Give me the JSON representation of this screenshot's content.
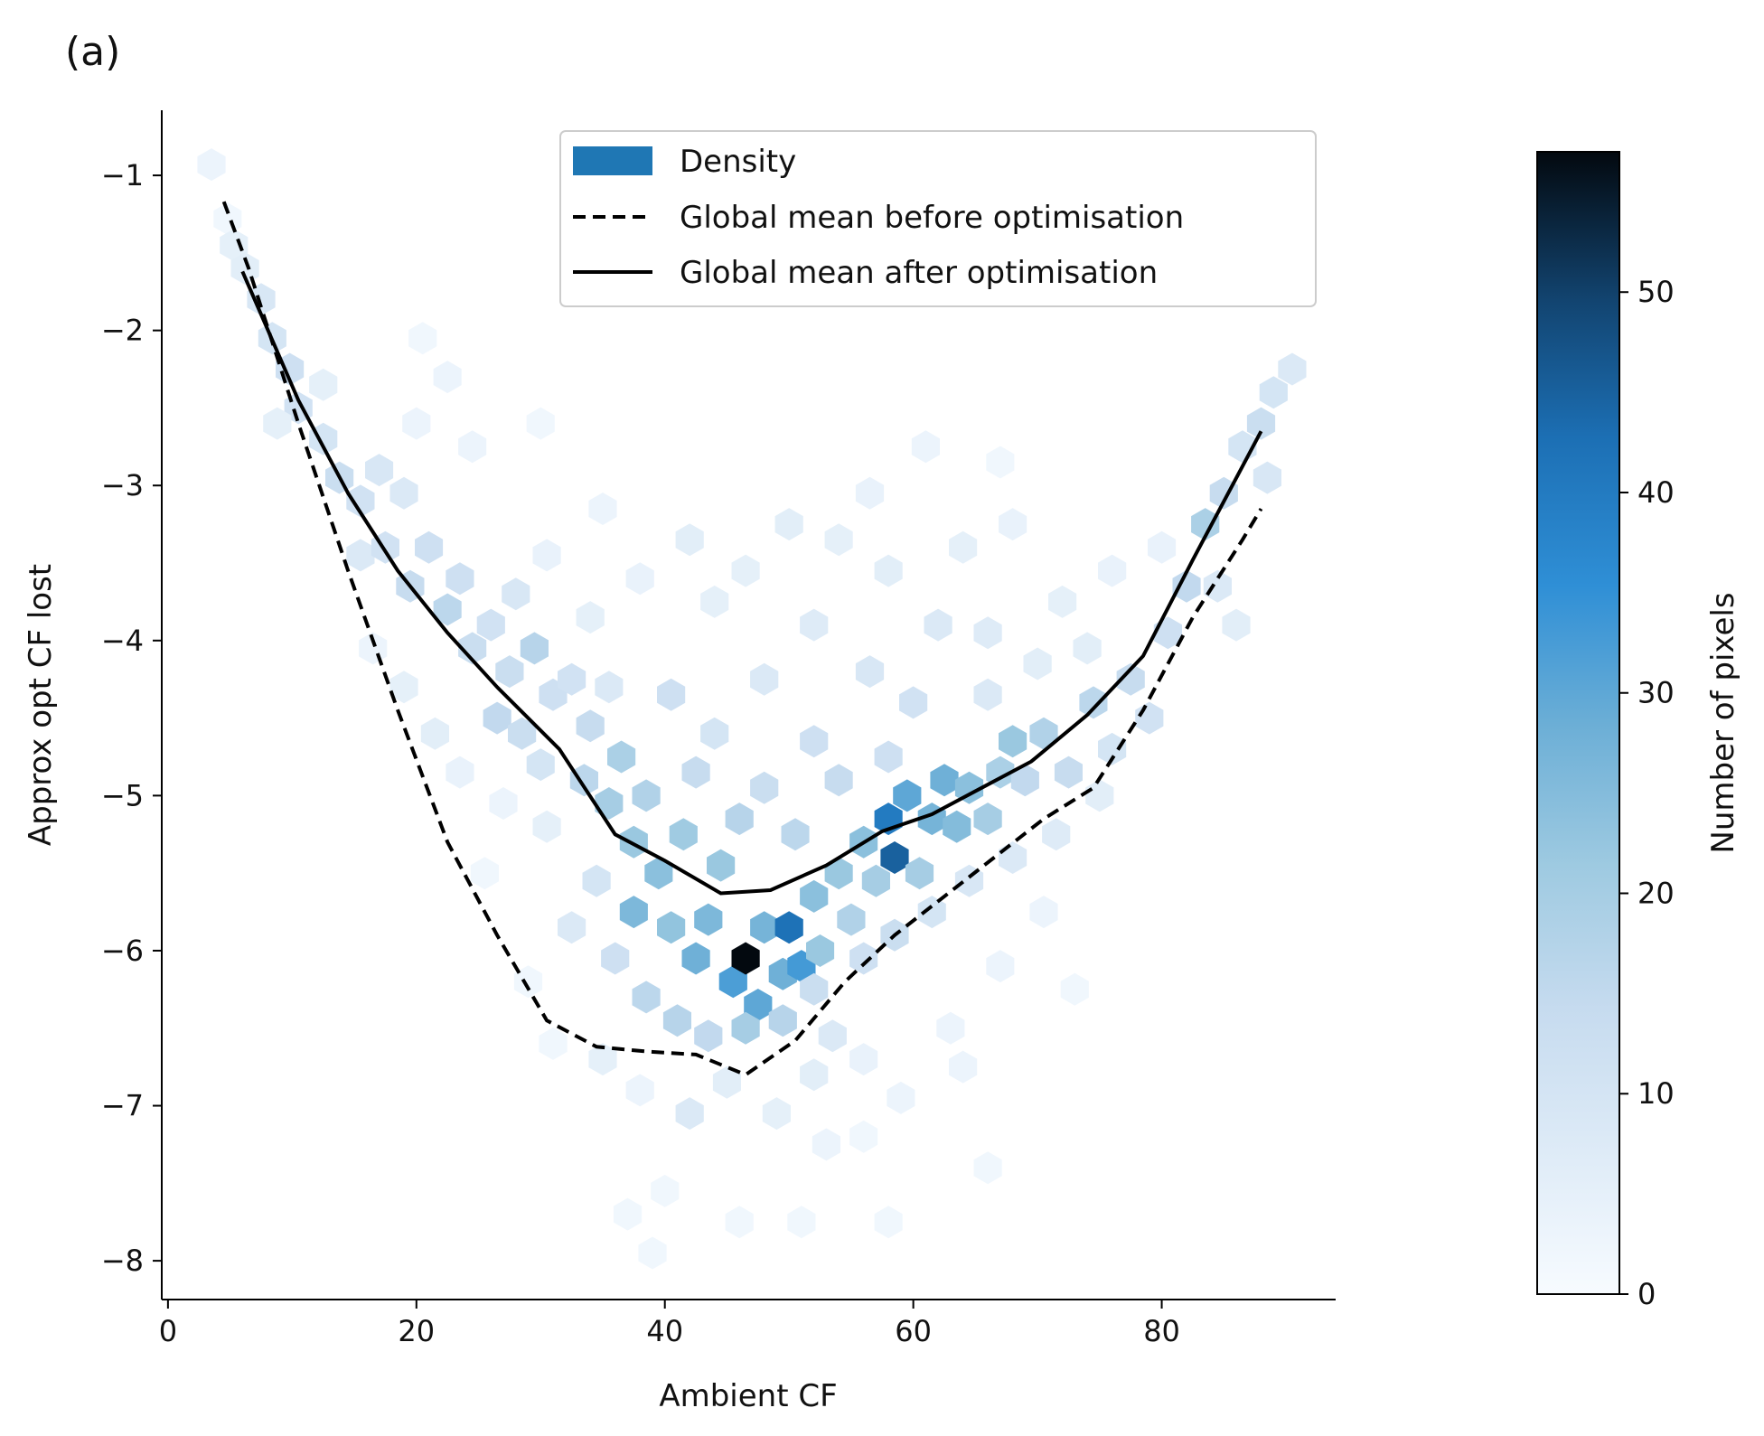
{
  "chart_data": {
    "type": "hexbin",
    "panel_label": "(a)",
    "xlabel": "Ambient CF",
    "ylabel": "Approx opt CF lost",
    "xlim": [
      -0.5,
      94
    ],
    "ylim": [
      -8.25,
      -0.58
    ],
    "xticks": [
      0,
      20,
      40,
      60,
      80
    ],
    "yticks": [
      -8,
      -7,
      -6,
      -5,
      -4,
      -3,
      -2,
      -1
    ],
    "xtick_labels": [
      "0",
      "20",
      "40",
      "60",
      "80"
    ],
    "ytick_labels": [
      "−8",
      "−7",
      "−6",
      "−5",
      "−4",
      "−3",
      "−2",
      "−1"
    ],
    "legend": {
      "position": "upper-center",
      "entries": [
        {
          "label": "Density",
          "kind": "patch",
          "color": "#1f77b4"
        },
        {
          "label": "Global mean before optimisation",
          "kind": "dashed-line",
          "color": "#000000"
        },
        {
          "label": "Global mean after optimisation",
          "kind": "solid-line",
          "color": "#000000"
        }
      ]
    },
    "colorbar": {
      "label": "Number of pixels",
      "range": [
        0,
        57
      ],
      "ticks": [
        0,
        10,
        20,
        30,
        40,
        50
      ],
      "tick_labels": [
        "0",
        "10",
        "20",
        "30",
        "40",
        "50"
      ],
      "colormap": "Blues"
    },
    "series": [
      {
        "name": "Global mean before optimisation",
        "style": "dashed",
        "color": "#000000",
        "x": [
          4.5,
          6.5,
          10.5,
          14.5,
          18.5,
          22.5,
          26.5,
          30.5,
          34.5,
          38.5,
          42.5,
          46.5,
          50.5,
          54.5,
          58.5,
          62.5,
          66.5,
          70.5,
          74.5,
          78.5,
          82.5,
          86.5,
          88
        ],
        "y": [
          -1.17,
          -1.6,
          -2.6,
          -3.55,
          -4.45,
          -5.3,
          -5.9,
          -6.45,
          -6.62,
          -6.65,
          -6.67,
          -6.8,
          -6.58,
          -6.2,
          -5.9,
          -5.65,
          -5.4,
          -5.15,
          -4.95,
          -4.45,
          -3.85,
          -3.35,
          -3.15
        ]
      },
      {
        "name": "Global mean after optimisation",
        "style": "solid",
        "color": "#000000",
        "x": [
          6,
          10.5,
          14.5,
          18.5,
          22.5,
          26.5,
          31.5,
          36,
          40,
          44.5,
          48.5,
          53,
          57.5,
          61.5,
          65.5,
          69.5,
          74,
          78.5,
          82.5,
          88
        ],
        "y": [
          -1.62,
          -2.45,
          -3.05,
          -3.55,
          -3.95,
          -4.3,
          -4.7,
          -5.25,
          -5.42,
          -5.63,
          -5.61,
          -5.45,
          -5.23,
          -5.12,
          -4.95,
          -4.78,
          -4.48,
          -4.1,
          -3.48,
          -2.65
        ]
      }
    ],
    "density_cells": [
      [
        3.5,
        -0.93,
        3
      ],
      [
        4.8,
        -1.28,
        2
      ],
      [
        5.3,
        -1.45,
        5
      ],
      [
        6.2,
        -1.6,
        6
      ],
      [
        7.5,
        -1.8,
        9
      ],
      [
        8.4,
        -2.05,
        10
      ],
      [
        9.8,
        -2.25,
        12
      ],
      [
        10.5,
        -2.5,
        11
      ],
      [
        8.8,
        -2.6,
        5
      ],
      [
        12.5,
        -2.35,
        5
      ],
      [
        12.5,
        -2.7,
        10
      ],
      [
        13.8,
        -2.95,
        13
      ],
      [
        15.5,
        -3.1,
        11
      ],
      [
        17,
        -2.9,
        9
      ],
      [
        19,
        -3.05,
        8
      ],
      [
        15.5,
        -3.45,
        8
      ],
      [
        17.5,
        -3.4,
        11
      ],
      [
        19.5,
        -3.65,
        14
      ],
      [
        21,
        -3.4,
        12
      ],
      [
        22.5,
        -3.8,
        16
      ],
      [
        23.5,
        -3.6,
        12
      ],
      [
        24.5,
        -4.05,
        13
      ],
      [
        26,
        -3.9,
        11
      ],
      [
        27.5,
        -4.2,
        13
      ],
      [
        28,
        -3.7,
        9
      ],
      [
        29.5,
        -4.05,
        17
      ],
      [
        31,
        -4.35,
        12
      ],
      [
        26.5,
        -4.5,
        15
      ],
      [
        28.5,
        -4.6,
        13
      ],
      [
        30,
        -4.8,
        10
      ],
      [
        32.5,
        -4.25,
        11
      ],
      [
        34,
        -4.55,
        14
      ],
      [
        35.5,
        -4.3,
        8
      ],
      [
        33.5,
        -4.9,
        16
      ],
      [
        35.5,
        -5.05,
        20
      ],
      [
        36.5,
        -4.75,
        19
      ],
      [
        37.5,
        -5.3,
        22
      ],
      [
        38.5,
        -5.0,
        18
      ],
      [
        37.5,
        -5.75,
        26
      ],
      [
        39.5,
        -5.5,
        24
      ],
      [
        40.5,
        -5.85,
        23
      ],
      [
        41.5,
        -5.25,
        21
      ],
      [
        42.5,
        -6.05,
        28
      ],
      [
        43.5,
        -5.8,
        26
      ],
      [
        44.5,
        -5.45,
        22
      ],
      [
        45.5,
        -6.2,
        32
      ],
      [
        46.5,
        -6.05,
        57
      ],
      [
        47.5,
        -6.35,
        30
      ],
      [
        48,
        -5.85,
        27
      ],
      [
        49.5,
        -6.15,
        28
      ],
      [
        50,
        -5.85,
        42
      ],
      [
        51,
        -6.1,
        33
      ],
      [
        52,
        -5.65,
        24
      ],
      [
        52.5,
        -6.0,
        22
      ],
      [
        54,
        -5.5,
        22
      ],
      [
        55,
        -5.8,
        18
      ],
      [
        56,
        -5.3,
        24
      ],
      [
        57,
        -5.55,
        20
      ],
      [
        58,
        -5.15,
        40
      ],
      [
        58.5,
        -5.4,
        45
      ],
      [
        59.5,
        -5.0,
        30
      ],
      [
        60.5,
        -5.5,
        20
      ],
      [
        61.5,
        -5.15,
        27
      ],
      [
        62.5,
        -4.9,
        28
      ],
      [
        63.5,
        -5.2,
        25
      ],
      [
        64.5,
        -4.95,
        24
      ],
      [
        66,
        -5.15,
        20
      ],
      [
        67,
        -4.85,
        19
      ],
      [
        68,
        -4.65,
        22
      ],
      [
        69,
        -4.9,
        15
      ],
      [
        70.5,
        -4.6,
        18
      ],
      [
        72.5,
        -4.85,
        14
      ],
      [
        74.5,
        -4.4,
        16
      ],
      [
        76,
        -4.7,
        10
      ],
      [
        77.5,
        -4.25,
        14
      ],
      [
        79,
        -4.5,
        11
      ],
      [
        80.5,
        -3.95,
        12
      ],
      [
        82,
        -3.65,
        15
      ],
      [
        83.5,
        -3.25,
        19
      ],
      [
        85,
        -3.05,
        14
      ],
      [
        86.5,
        -2.75,
        10
      ],
      [
        88,
        -2.6,
        13
      ],
      [
        88.5,
        -2.95,
        9
      ],
      [
        89,
        -2.4,
        10
      ],
      [
        90.5,
        -2.25,
        8
      ],
      [
        46.5,
        -3.55,
        5
      ],
      [
        50,
        -3.25,
        6
      ],
      [
        54,
        -3.35,
        5
      ],
      [
        58,
        -3.55,
        6
      ],
      [
        62,
        -3.9,
        8
      ],
      [
        66,
        -3.95,
        7
      ],
      [
        56.5,
        -4.2,
        9
      ],
      [
        60,
        -4.4,
        11
      ],
      [
        52,
        -4.65,
        12
      ],
      [
        48,
        -4.95,
        13
      ],
      [
        44,
        -4.6,
        10
      ],
      [
        40.5,
        -4.35,
        12
      ],
      [
        42.5,
        -4.85,
        14
      ],
      [
        46,
        -5.15,
        17
      ],
      [
        50.5,
        -5.25,
        16
      ],
      [
        54,
        -4.9,
        14
      ],
      [
        58,
        -4.75,
        12
      ],
      [
        42,
        -3.35,
        6
      ],
      [
        38,
        -3.6,
        4
      ],
      [
        34,
        -3.85,
        5
      ],
      [
        30.5,
        -3.45,
        4
      ],
      [
        66,
        -4.35,
        8
      ],
      [
        70,
        -4.15,
        6
      ],
      [
        74,
        -4.05,
        6
      ],
      [
        36,
        -6.05,
        12
      ],
      [
        34.5,
        -5.55,
        10
      ],
      [
        32.5,
        -5.85,
        8
      ],
      [
        38.5,
        -6.3,
        16
      ],
      [
        41,
        -6.45,
        17
      ],
      [
        43.5,
        -6.55,
        15
      ],
      [
        46.5,
        -6.5,
        20
      ],
      [
        49.5,
        -6.45,
        17
      ],
      [
        52,
        -6.25,
        13
      ],
      [
        53.5,
        -6.55,
        8
      ],
      [
        56,
        -6.05,
        12
      ],
      [
        58.5,
        -5.9,
        13
      ],
      [
        61.5,
        -5.75,
        10
      ],
      [
        64.5,
        -5.55,
        9
      ],
      [
        68,
        -5.4,
        8
      ],
      [
        71.5,
        -5.25,
        7
      ],
      [
        75,
        -5.0,
        6
      ],
      [
        35,
        -6.7,
        5
      ],
      [
        38,
        -6.9,
        3
      ],
      [
        42,
        -7.05,
        8
      ],
      [
        45,
        -6.85,
        6
      ],
      [
        49,
        -7.05,
        5
      ],
      [
        52,
        -6.8,
        6
      ],
      [
        56,
        -6.7,
        4
      ],
      [
        59,
        -6.95,
        3
      ],
      [
        63,
        -6.5,
        3
      ],
      [
        67,
        -6.1,
        3
      ],
      [
        70.5,
        -5.75,
        3
      ],
      [
        25.5,
        -5.5,
        2
      ],
      [
        29,
        -6.2,
        2
      ],
      [
        31,
        -6.6,
        2
      ],
      [
        37,
        -7.7,
        2
      ],
      [
        40,
        -7.55,
        2
      ],
      [
        39,
        -7.95,
        2
      ],
      [
        46,
        -7.75,
        2
      ],
      [
        51,
        -7.75,
        2
      ],
      [
        58,
        -7.75,
        2
      ],
      [
        53,
        -7.25,
        3
      ],
      [
        56,
        -7.2,
        2
      ],
      [
        64,
        -6.75,
        3
      ],
      [
        66,
        -7.4,
        2
      ],
      [
        73,
        -6.25,
        2
      ],
      [
        16.5,
        -4.05,
        3
      ],
      [
        19,
        -4.3,
        5
      ],
      [
        21.5,
        -4.6,
        6
      ],
      [
        23.5,
        -4.85,
        4
      ],
      [
        27,
        -5.05,
        3
      ],
      [
        30.5,
        -5.2,
        5
      ],
      [
        22.5,
        -2.3,
        3
      ],
      [
        24.5,
        -2.75,
        3
      ],
      [
        20,
        -2.6,
        3
      ],
      [
        20.5,
        -2.05,
        2
      ],
      [
        30,
        -2.6,
        2
      ],
      [
        35,
        -3.15,
        3
      ],
      [
        44,
        -3.75,
        5
      ],
      [
        48,
        -4.25,
        8
      ],
      [
        52,
        -3.9,
        7
      ],
      [
        64,
        -3.4,
        5
      ],
      [
        68,
        -3.25,
        4
      ],
      [
        72,
        -3.75,
        5
      ],
      [
        76,
        -3.55,
        4
      ],
      [
        80,
        -3.4,
        4
      ],
      [
        84.5,
        -3.65,
        8
      ],
      [
        86,
        -3.9,
        6
      ],
      [
        61,
        -2.75,
        3
      ],
      [
        56.5,
        -3.05,
        4
      ],
      [
        67,
        -2.85,
        2
      ]
    ]
  }
}
